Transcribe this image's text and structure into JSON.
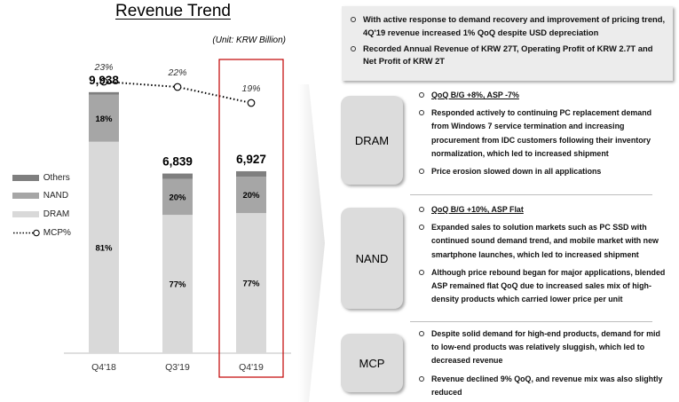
{
  "chart_data": {
    "type": "bar",
    "stacked": true,
    "title": "Revenue Trend",
    "unit": "(Unit: KRW Billion)",
    "categories": [
      "Q4'18",
      "Q3'19",
      "Q4'19"
    ],
    "totals": [
      9938,
      6839,
      6927
    ],
    "total_labels": [
      "9,938",
      "6,839",
      "6,927"
    ],
    "series": [
      {
        "name": "DRAM",
        "share": [
          81,
          77,
          77
        ],
        "labels": [
          "81%",
          "77%",
          "77%"
        ],
        "color": "#d9d9d9"
      },
      {
        "name": "NAND",
        "share": [
          18,
          20,
          20
        ],
        "labels": [
          "18%",
          "20%",
          "20%"
        ],
        "color": "#a6a6a6"
      },
      {
        "name": "Others",
        "share": [
          1,
          3,
          3
        ],
        "labels": [
          "",
          "",
          ""
        ],
        "color": "#7f7f7f"
      }
    ],
    "line_series": {
      "name": "MCP%",
      "values": [
        23,
        22,
        19
      ],
      "labels": [
        "23%",
        "22%",
        "19%"
      ]
    },
    "legend": [
      "Others",
      "NAND",
      "DRAM",
      "MCP%"
    ],
    "legend_position": "left",
    "highlight_category": "Q4'19",
    "ylim": [
      0,
      10000
    ]
  },
  "summary": {
    "bullets": [
      "With active response to demand recovery and improvement of pricing trend, 4Q'19 revenue increased 1% QoQ despite USD depreciation",
      "Recorded Annual Revenue of KRW 27T, Operating Profit of KRW 2.7T and Net Profit of KRW 2T"
    ]
  },
  "segments": [
    {
      "label": "DRAM",
      "bullets": [
        "QoQ B/G +8%, ASP -7%",
        "Responded actively to continuing PC replacement demand from Windows 7 service termination and increasing procurement from IDC customers following their inventory normalization, which led to increased shipment",
        "Price erosion slowed down in all applications"
      ]
    },
    {
      "label": "NAND",
      "bullets": [
        "QoQ B/G +10%, ASP Flat",
        "Expanded sales to solution markets such as PC SSD with continued sound demand trend, and mobile market with new smartphone launches, which led to increased shipment",
        "Although price rebound began for major applications, blended ASP remained flat QoQ due to increased sales mix of high-density products which carried lower price per unit"
      ]
    },
    {
      "label": "MCP",
      "bullets": [
        "Despite solid demand for high-end products, demand for mid to low-end products was relatively sluggish, which led to decreased revenue",
        "Revenue declined 9% QoQ, and revenue mix was also slightly reduced"
      ]
    }
  ]
}
